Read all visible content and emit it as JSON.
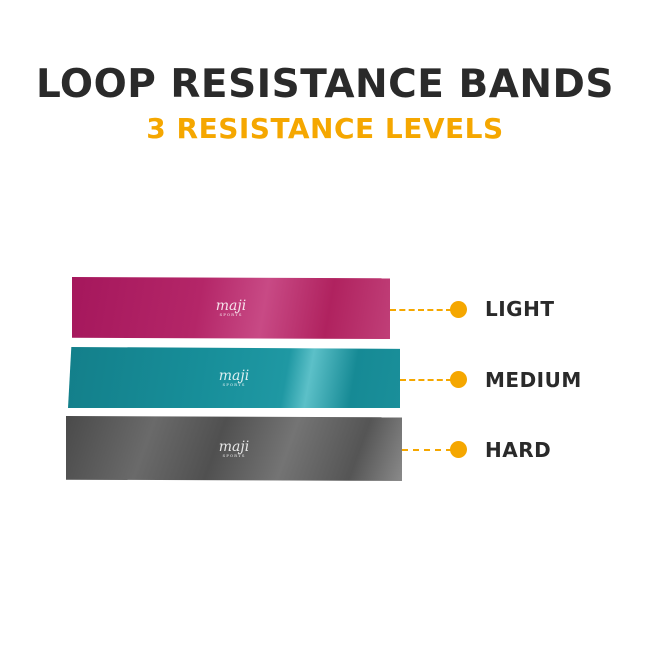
{
  "header": {
    "title": "LOOP RESISTANCE BANDS",
    "subtitle": "3 RESISTANCE LEVELS"
  },
  "accent_color": "#f5a700",
  "bands": [
    {
      "label": "LIGHT",
      "color": "#b42668",
      "logo": "maji",
      "logo_sub": "SPORTS"
    },
    {
      "label": "MEDIUM",
      "color": "#178e99",
      "logo": "maji",
      "logo_sub": "SPORTS"
    },
    {
      "label": "HARD",
      "color": "#5a5a5a",
      "logo": "maji",
      "logo_sub": "SPORTS"
    }
  ]
}
